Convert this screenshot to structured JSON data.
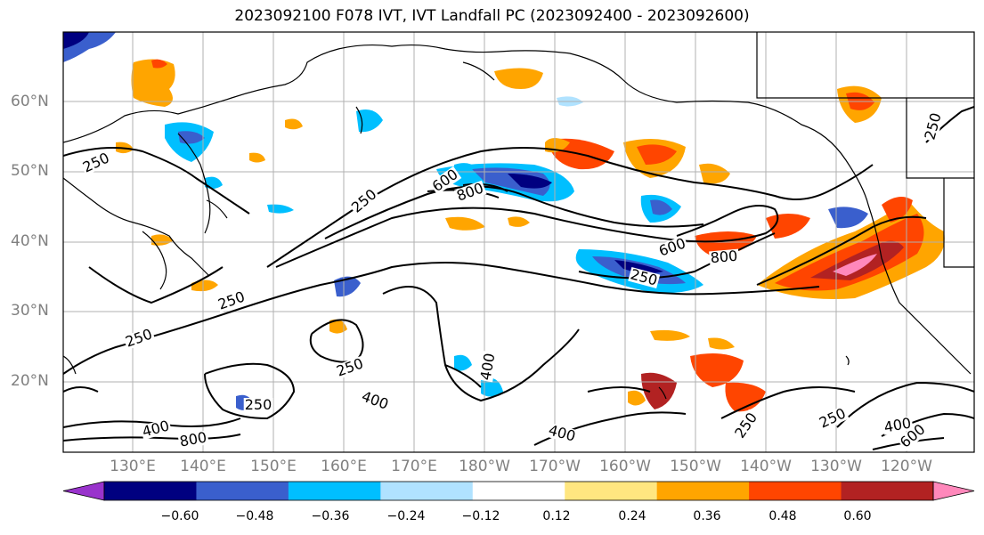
{
  "title": "2023092100 F078 IVT, IVT Landfall PC (2023092400 - 2023092600)",
  "lat_labels": [
    "60°N",
    "50°N",
    "40°N",
    "30°N",
    "20°N"
  ],
  "lon_labels": [
    "130°E",
    "140°E",
    "150°E",
    "160°E",
    "170°E",
    "180°W",
    "170°W",
    "160°W",
    "150°W",
    "140°W",
    "130°W",
    "120°W"
  ],
  "colorbar": {
    "ticks": [
      "−0.60",
      "−0.48",
      "−0.36",
      "−0.24",
      "−0.12",
      "0.12",
      "0.24",
      "0.36",
      "0.48",
      "0.60"
    ],
    "colors": [
      "#9933cc",
      "#000080",
      "#3a5fcd",
      "#00bfff",
      "#b0e2ff",
      "#ffffff",
      "#ffe680",
      "#ffa500",
      "#ff4500",
      "#b22222",
      "#ff88bb"
    ]
  },
  "contour_labels": [
    "250",
    "250",
    "250",
    "250",
    "250",
    "250",
    "250",
    "250",
    "400",
    "400",
    "400",
    "400",
    "400",
    "600",
    "600",
    "600",
    "800",
    "800",
    "800",
    "250",
    "250"
  ]
}
